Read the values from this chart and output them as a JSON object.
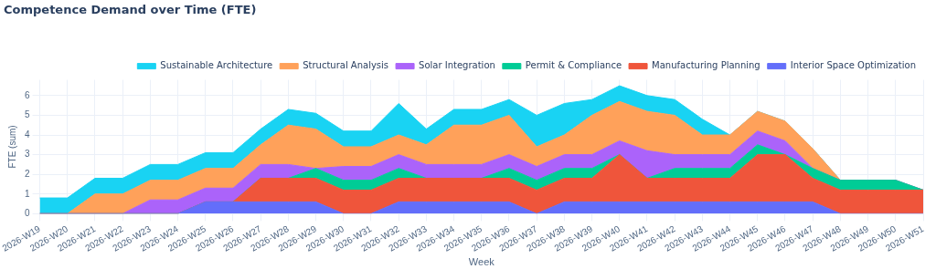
{
  "chart_data": {
    "type": "area",
    "title": "Competence Demand over Time (FTE)",
    "xlabel": "Week",
    "ylabel": "FTE (sum)",
    "categories": [
      "2026-W19",
      "2026-W20",
      "2026-W21",
      "2026-W22",
      "2026-W23",
      "2026-W24",
      "2026-W25",
      "2026-W26",
      "2026-W27",
      "2026-W28",
      "2026-W29",
      "2026-W30",
      "2026-W31",
      "2026-W32",
      "2026-W33",
      "2026-W34",
      "2026-W35",
      "2026-W36",
      "2026-W37",
      "2026-W38",
      "2026-W39",
      "2026-W40",
      "2026-W41",
      "2026-W42",
      "2026-W43",
      "2026-W44",
      "2026-W45",
      "2026-W46",
      "2026-W47",
      "2026-W48",
      "2026-W49",
      "2026-W50",
      "2026-W51"
    ],
    "stacked": true,
    "ylim": [
      0,
      6.8
    ],
    "yticks": [
      0,
      1,
      2,
      3,
      4,
      5,
      6
    ],
    "grid": true,
    "legend": "top right",
    "marker": "none",
    "series": [
      {
        "name": "Interior Space Optimization",
        "color": "#636efa",
        "values": [
          0,
          0,
          0,
          0,
          0,
          0,
          0.6,
          0.6,
          0.6,
          0.6,
          0.6,
          0,
          0,
          0.6,
          0.6,
          0.6,
          0.6,
          0.6,
          0,
          0.6,
          0.6,
          0.6,
          0.6,
          0.6,
          0.6,
          0.6,
          0.6,
          0.6,
          0.6,
          0,
          0,
          0,
          0
        ]
      },
      {
        "name": "Manufacturing Planning",
        "color": "#ef553b",
        "values": [
          0,
          0,
          0,
          0,
          0,
          0,
          0,
          0,
          1.2,
          1.2,
          1.2,
          1.2,
          1.2,
          1.2,
          1.2,
          1.2,
          1.2,
          1.2,
          1.2,
          1.2,
          1.2,
          2.4,
          1.2,
          1.2,
          1.2,
          1.2,
          2.4,
          2.4,
          1.2,
          1.2,
          1.2,
          1.2,
          1.2
        ]
      },
      {
        "name": "Permit & Compliance",
        "color": "#00cc96",
        "values": [
          0,
          0,
          0,
          0,
          0,
          0,
          0,
          0,
          0,
          0,
          0.5,
          0.5,
          0.5,
          0.5,
          0,
          0,
          0,
          0.5,
          0.5,
          0.5,
          0.5,
          0,
          0,
          0.5,
          0.5,
          0.5,
          0.5,
          0,
          0.5,
          0.5,
          0.5,
          0.5,
          0
        ]
      },
      {
        "name": "Solar Integration",
        "color": "#ab63fa",
        "values": [
          0,
          0,
          0,
          0,
          0.7,
          0.7,
          0.7,
          0.7,
          0.7,
          0.7,
          0,
          0.7,
          0.7,
          0.7,
          0.7,
          0.7,
          0.7,
          0.7,
          0.7,
          0.7,
          0.7,
          0.7,
          1.4,
          0.7,
          0.7,
          0.7,
          0.7,
          0.7,
          0,
          0,
          0,
          0,
          0
        ]
      },
      {
        "name": "Structural Analysis",
        "color": "#ffa15a",
        "values": [
          0,
          0,
          1,
          1,
          1,
          1,
          1,
          1,
          1,
          2,
          2,
          1,
          1,
          1,
          1,
          2,
          2,
          2,
          1,
          1,
          2,
          2,
          2,
          2,
          1,
          1,
          1,
          1,
          1,
          0,
          0,
          0,
          0
        ]
      },
      {
        "name": "Sustainable Architecture",
        "color": "#19d3f3",
        "values": [
          0.8,
          0.8,
          0.8,
          0.8,
          0.8,
          0.8,
          0.8,
          0.8,
          0.8,
          0.8,
          0.8,
          0.8,
          0.8,
          1.6,
          0.8,
          0.8,
          0.8,
          0.8,
          1.6,
          1.6,
          0.8,
          0.8,
          0.8,
          0.8,
          0.8,
          0,
          0,
          0,
          0,
          0,
          0,
          0,
          0
        ]
      }
    ]
  }
}
